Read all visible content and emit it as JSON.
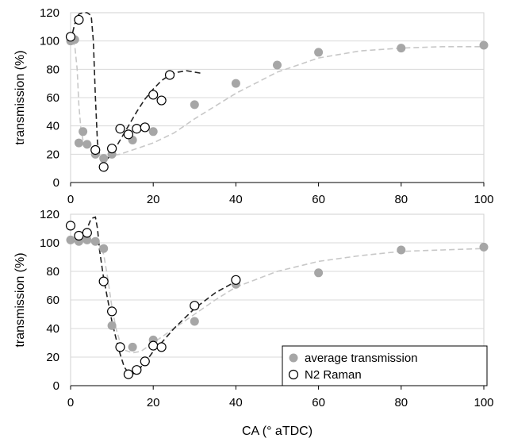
{
  "chart_data": [
    {
      "type": "scatter",
      "ylabel": "transmission (%)",
      "xlim": [
        0,
        100
      ],
      "ylim": [
        0,
        120
      ],
      "x_ticks": [
        "0",
        "20",
        "40",
        "60",
        "80",
        "100"
      ],
      "y_ticks": [
        "0",
        "20",
        "40",
        "60",
        "80",
        "100",
        "120"
      ],
      "grid": "horizontal",
      "series": [
        {
          "marker": "filled-circle",
          "color": "#a6a6a6",
          "points": [
            [
              0,
              100
            ],
            [
              1,
              101
            ],
            [
              2,
              28
            ],
            [
              3,
              36
            ],
            [
              4,
              27
            ],
            [
              6,
              20
            ],
            [
              8,
              17
            ],
            [
              10,
              20
            ],
            [
              15,
              30
            ],
            [
              20,
              36
            ],
            [
              30,
              55
            ],
            [
              40,
              70
            ],
            [
              50,
              83
            ],
            [
              60,
              92
            ],
            [
              80,
              95
            ],
            [
              100,
              97
            ]
          ]
        },
        {
          "marker": "open-circle",
          "color": "#000000",
          "points": [
            [
              0,
              103
            ],
            [
              2,
              115
            ],
            [
              6,
              23
            ],
            [
              8,
              11
            ],
            [
              10,
              24
            ],
            [
              12,
              38
            ],
            [
              14,
              34
            ],
            [
              16,
              38
            ],
            [
              18,
              39
            ],
            [
              20,
              62
            ],
            [
              22,
              58
            ],
            [
              24,
              76
            ]
          ]
        }
      ],
      "trendlines": [
        {
          "style": "dashed",
          "color": "#c8c8c8",
          "points": [
            [
              0,
              100
            ],
            [
              1,
              97
            ],
            [
              1.6,
              80
            ],
            [
              2,
              55
            ],
            [
              2.5,
              38
            ],
            [
              3,
              30
            ],
            [
              4,
              26
            ],
            [
              5,
              23
            ],
            [
              6,
              21
            ],
            [
              7,
              19
            ],
            [
              8,
              18
            ],
            [
              10,
              19
            ],
            [
              12,
              20
            ],
            [
              15,
              23
            ],
            [
              20,
              28
            ],
            [
              25,
              35
            ],
            [
              30,
              45
            ],
            [
              40,
              63
            ],
            [
              50,
              78
            ],
            [
              60,
              88
            ],
            [
              70,
              93
            ],
            [
              80,
              95
            ],
            [
              90,
              96
            ],
            [
              100,
              96
            ]
          ]
        },
        {
          "style": "dashed",
          "color": "#222222",
          "points": [
            [
              0,
              100
            ],
            [
              1,
              112
            ],
            [
              2,
              119
            ],
            [
              3,
              120
            ],
            [
              4,
              120
            ],
            [
              5,
              118
            ],
            [
              5.5,
              100
            ],
            [
              6,
              60
            ],
            [
              6.5,
              28
            ],
            [
              7,
              20
            ],
            [
              8,
              16
            ],
            [
              9,
              17
            ],
            [
              10,
              20
            ],
            [
              12,
              30
            ],
            [
              14,
              40
            ],
            [
              16,
              50
            ],
            [
              18,
              59
            ],
            [
              20,
              66
            ],
            [
              22,
              72
            ],
            [
              24,
              76
            ],
            [
              26,
              78
            ],
            [
              28,
              79
            ],
            [
              30,
              78
            ],
            [
              32,
              77
            ]
          ]
        }
      ]
    },
    {
      "type": "scatter",
      "ylabel": "transmission (%)",
      "xlabel": "CA (° aTDC)",
      "xlim": [
        0,
        100
      ],
      "ylim": [
        0,
        120
      ],
      "x_ticks": [
        "0",
        "20",
        "40",
        "60",
        "80",
        "100"
      ],
      "y_ticks": [
        "0",
        "20",
        "40",
        "60",
        "80",
        "100",
        "120"
      ],
      "grid": "horizontal",
      "legend_position": "bottom-right",
      "legend": [
        "average transmission",
        "N2 Raman"
      ],
      "series": [
        {
          "name": "average transmission",
          "marker": "filled-circle",
          "color": "#a6a6a6",
          "points": [
            [
              0,
              102
            ],
            [
              2,
              101
            ],
            [
              4,
              102
            ],
            [
              6,
              101
            ],
            [
              8,
              96
            ],
            [
              10,
              42
            ],
            [
              12,
              27
            ],
            [
              15,
              27
            ],
            [
              20,
              32
            ],
            [
              30,
              45
            ],
            [
              40,
              71
            ],
            [
              60,
              79
            ],
            [
              80,
              95
            ],
            [
              100,
              97
            ]
          ]
        },
        {
          "name": "N2 Raman",
          "marker": "open-circle",
          "color": "#000000",
          "points": [
            [
              0,
              112
            ],
            [
              2,
              105
            ],
            [
              4,
              107
            ],
            [
              8,
              73
            ],
            [
              10,
              52
            ],
            [
              12,
              27
            ],
            [
              14,
              8
            ],
            [
              16,
              11
            ],
            [
              18,
              17
            ],
            [
              20,
              28
            ],
            [
              22,
              27
            ],
            [
              30,
              56
            ],
            [
              40,
              74
            ]
          ]
        }
      ],
      "trendlines": [
        {
          "style": "dashed",
          "color": "#c8c8c8",
          "points": [
            [
              0,
              102
            ],
            [
              4,
              102
            ],
            [
              6,
              101
            ],
            [
              7,
              98
            ],
            [
              8,
              92
            ],
            [
              9,
              75
            ],
            [
              10,
              55
            ],
            [
              11,
              40
            ],
            [
              12,
              30
            ],
            [
              13,
              25
            ],
            [
              15,
              23
            ],
            [
              17,
              24
            ],
            [
              20,
              30
            ],
            [
              25,
              40
            ],
            [
              30,
              50
            ],
            [
              35,
              60
            ],
            [
              40,
              69
            ],
            [
              50,
              80
            ],
            [
              60,
              87
            ],
            [
              70,
              91
            ],
            [
              80,
              94
            ],
            [
              90,
              95
            ],
            [
              100,
              96
            ]
          ]
        },
        {
          "style": "dashed",
          "color": "#222222",
          "points": [
            [
              0,
              102
            ],
            [
              1,
              101
            ],
            [
              2,
              102
            ],
            [
              3,
              105
            ],
            [
              4,
              110
            ],
            [
              5,
              117
            ],
            [
              6,
              118
            ],
            [
              6.5,
              110
            ],
            [
              7,
              95
            ],
            [
              8,
              75
            ],
            [
              9,
              60
            ],
            [
              10,
              45
            ],
            [
              11,
              33
            ],
            [
              12,
              22
            ],
            [
              13,
              13
            ],
            [
              14,
              9
            ],
            [
              15,
              8
            ],
            [
              16,
              10
            ],
            [
              18,
              16
            ],
            [
              20,
              24
            ],
            [
              22,
              30
            ],
            [
              25,
              40
            ],
            [
              30,
              54
            ],
            [
              35,
              65
            ],
            [
              40,
              73
            ]
          ]
        }
      ]
    }
  ]
}
